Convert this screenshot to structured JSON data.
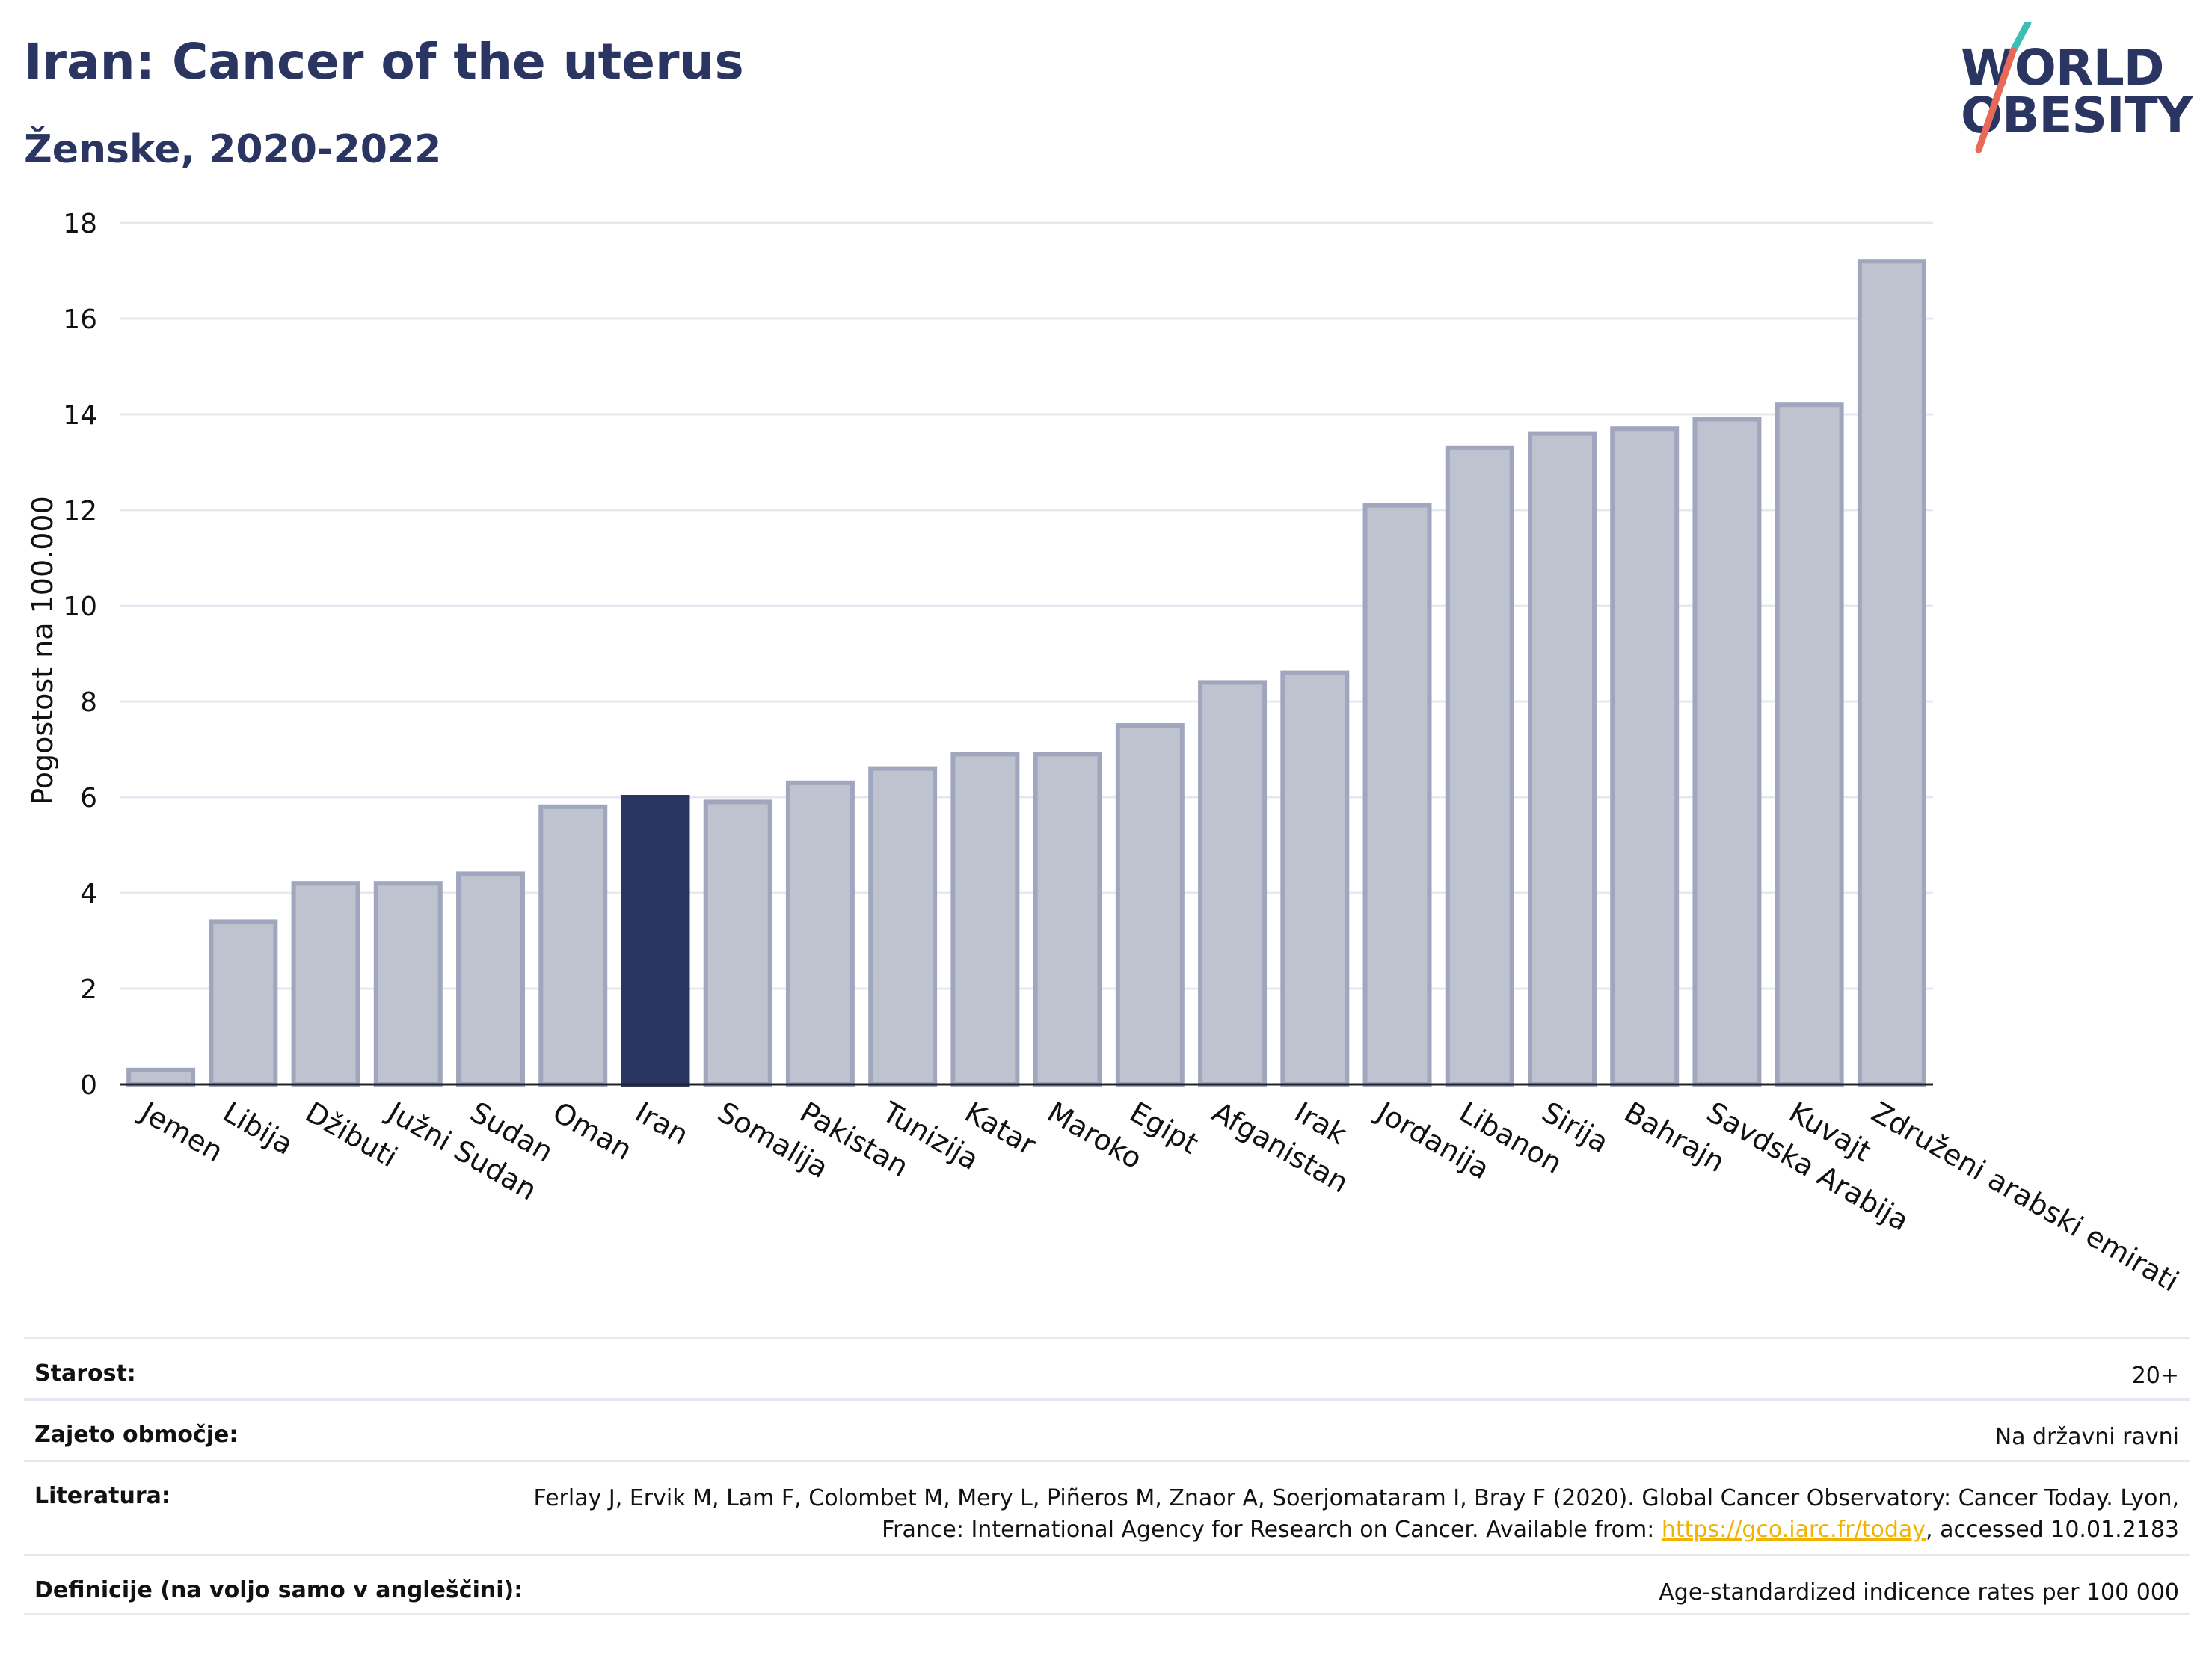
{
  "header": {
    "title": "Iran: Cancer of the uterus",
    "subtitle": "Ženske, 2020-2022"
  },
  "logo": {
    "line1": "WORLD",
    "line2": "OBESITY"
  },
  "colors": {
    "highlight": "#2a3561",
    "bar_fill": "#bfc3d0",
    "bar_stroke": "#a0a6bd",
    "title": "#2a3561",
    "link": "#f0b400"
  },
  "chart_data": {
    "type": "bar",
    "title": "Iran: Cancer of the uterus",
    "subtitle": "Ženske, 2020-2022",
    "xlabel": "",
    "ylabel": "Pogostost na 100.000",
    "ylim": [
      0,
      18
    ],
    "yticks": [
      0,
      2,
      4,
      6,
      8,
      10,
      12,
      14,
      16,
      18
    ],
    "grid": true,
    "highlight": "Iran",
    "categories": [
      "Jemen",
      "Libija",
      "Džibuti",
      "Južni Sudan",
      "Sudan",
      "Oman",
      "Iran",
      "Somalija",
      "Pakistan",
      "Tunizija",
      "Katar",
      "Maroko",
      "Egipt",
      "Afganistan",
      "Irak",
      "Jordanija",
      "Libanon",
      "Sirija",
      "Bahrajn",
      "Savdska Arabija",
      "Kuvajt",
      "Združeni arabski emirati"
    ],
    "values": [
      0.3,
      3.4,
      4.2,
      4.2,
      4.4,
      5.8,
      6.0,
      5.9,
      6.3,
      6.6,
      6.9,
      6.9,
      7.5,
      8.4,
      8.6,
      12.1,
      13.3,
      13.6,
      13.7,
      13.9,
      14.2,
      17.2
    ]
  },
  "meta": {
    "age_label": "Starost:",
    "age_value": "20+",
    "coverage_label": "Zajeto območje:",
    "coverage_value": "Na državni ravni",
    "literature_label": "Literatura:",
    "literature_text_1": "Ferlay J, Ervik M, Lam F, Colombet M, Mery L, Piñeros M, Znaor A, Soerjomataram I, Bray F (2020). Global Cancer Observatory: Cancer Today. Lyon, France: International Agency for Research on Cancer. Available from: ",
    "literature_link": "https://gco.iarc.fr/today",
    "literature_text_2": ", accessed 10.01.2183",
    "definitions_label": "Definicije (na voljo samo v angleščini):",
    "definitions_value": "Age-standardized indicence rates per 100 000"
  }
}
